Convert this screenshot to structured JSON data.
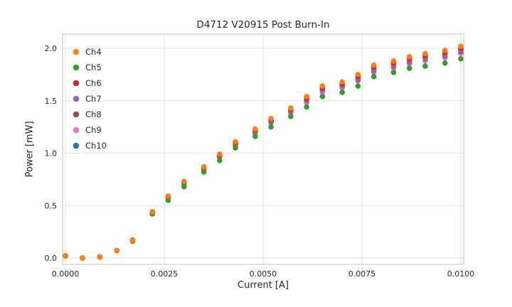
{
  "figure": {
    "background": "#ffffff"
  },
  "colors": {
    "grid": "#e2e2e2",
    "spine": "#cccccc",
    "text": "#262626",
    "background": "#ffffff"
  },
  "chart_data": {
    "type": "scatter",
    "title": "D4712 V20915 Post Burn-In",
    "xlabel": "Current [A]",
    "ylabel": "Power [mW]",
    "xlim": [
      0.0,
      0.01
    ],
    "ylim": [
      0.0,
      2.0
    ],
    "xticks": [
      0.0,
      0.0025,
      0.005,
      0.0075,
      0.01
    ],
    "xtick_labels": [
      "0.0000",
      "0.0025",
      "0.0050",
      "0.0075",
      "0.0100"
    ],
    "yticks": [
      0.0,
      0.5,
      1.0,
      1.5,
      2.0
    ],
    "ytick_labels": [
      "0.0",
      "0.5",
      "1.0",
      "1.5",
      "2.0"
    ],
    "grid": true,
    "legend_position": "upper left",
    "x": [
      0.0,
      0.00043,
      0.00087,
      0.0013,
      0.0017,
      0.0022,
      0.0026,
      0.003,
      0.0035,
      0.0039,
      0.0043,
      0.0048,
      0.0052,
      0.0057,
      0.0061,
      0.0065,
      0.007,
      0.0074,
      0.0078,
      0.0083,
      0.0087,
      0.0091,
      0.0096,
      0.01
    ],
    "series": [
      {
        "name": "Ch4",
        "color": "#ff7f0e",
        "values": [
          0.02,
          0.0,
          0.01,
          0.07,
          0.17,
          0.44,
          0.59,
          0.73,
          0.87,
          0.99,
          1.11,
          1.23,
          1.33,
          1.43,
          1.54,
          1.64,
          1.68,
          1.75,
          1.84,
          1.88,
          1.92,
          1.95,
          1.98,
          2.02
        ]
      },
      {
        "name": "Ch5",
        "color": "#2ca02c",
        "values": [
          0.02,
          0.0,
          0.01,
          0.07,
          0.16,
          0.42,
          0.55,
          0.68,
          0.82,
          0.93,
          1.05,
          1.16,
          1.25,
          1.35,
          1.44,
          1.54,
          1.58,
          1.64,
          1.73,
          1.77,
          1.81,
          1.83,
          1.86,
          1.9
        ]
      },
      {
        "name": "Ch6",
        "color": "#d62728",
        "values": [
          0.02,
          0.0,
          0.01,
          0.07,
          0.17,
          0.44,
          0.58,
          0.72,
          0.86,
          0.98,
          1.1,
          1.22,
          1.32,
          1.42,
          1.52,
          1.62,
          1.66,
          1.73,
          1.82,
          1.86,
          1.9,
          1.93,
          1.96,
          2.0
        ]
      },
      {
        "name": "Ch7",
        "color": "#9467bd",
        "values": [
          0.02,
          0.0,
          0.01,
          0.07,
          0.17,
          0.44,
          0.57,
          0.71,
          0.85,
          0.97,
          1.09,
          1.21,
          1.31,
          1.41,
          1.5,
          1.6,
          1.64,
          1.71,
          1.8,
          1.84,
          1.88,
          1.91,
          1.94,
          1.98
        ]
      },
      {
        "name": "Ch8",
        "color": "#8c564b",
        "values": [
          0.02,
          0.0,
          0.01,
          0.07,
          0.17,
          0.43,
          0.57,
          0.71,
          0.85,
          0.97,
          1.08,
          1.2,
          1.3,
          1.4,
          1.5,
          1.6,
          1.64,
          1.7,
          1.79,
          1.83,
          1.87,
          1.9,
          1.93,
          1.97
        ]
      },
      {
        "name": "Ch9",
        "color": "#e377c2",
        "values": [
          0.02,
          0.0,
          0.01,
          0.07,
          0.17,
          0.43,
          0.57,
          0.7,
          0.84,
          0.96,
          1.07,
          1.19,
          1.29,
          1.38,
          1.48,
          1.58,
          1.62,
          1.69,
          1.77,
          1.81,
          1.85,
          1.88,
          1.91,
          1.95
        ]
      },
      {
        "name": "Ch10",
        "color": "#1f77b4",
        "values": [
          0.02,
          0.0,
          0.01,
          0.07,
          0.17,
          0.43,
          0.57,
          0.71,
          0.85,
          0.97,
          1.09,
          1.21,
          1.3,
          1.4,
          1.5,
          1.6,
          1.64,
          1.71,
          1.8,
          1.84,
          1.88,
          1.91,
          1.94,
          1.98
        ]
      }
    ]
  }
}
